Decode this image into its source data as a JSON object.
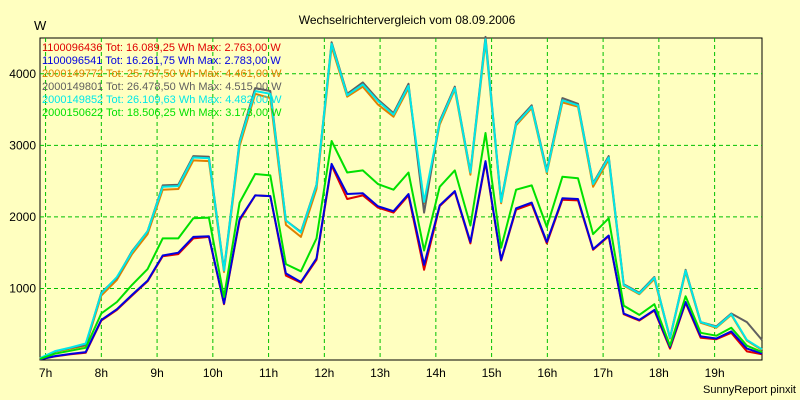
{
  "chart_data": {
    "type": "line",
    "title": "Wechselrichtervergleich vom 08.09.2006",
    "ylabel": "W",
    "xlabel": "",
    "x_ticks": [
      "7h",
      "8h",
      "9h",
      "10h",
      "11h",
      "12h",
      "13h",
      "14h",
      "15h",
      "16h",
      "17h",
      "18h",
      "19h"
    ],
    "y_ticks": [
      "1000",
      "2000",
      "3000",
      "4000"
    ],
    "x_range_hours": [
      6.9,
      19.85
    ],
    "ylim": [
      0,
      4500
    ],
    "grid": true,
    "legend_position": "top-left",
    "x": [
      6.9,
      7.17,
      7.45,
      7.72,
      8.0,
      8.28,
      8.55,
      8.83,
      9.1,
      9.38,
      9.65,
      9.93,
      10.2,
      10.48,
      10.76,
      11.03,
      11.31,
      11.58,
      11.86,
      12.13,
      12.41,
      12.69,
      12.96,
      13.24,
      13.51,
      13.79,
      14.07,
      14.34,
      14.62,
      14.89,
      15.17,
      15.44,
      15.72,
      15.99,
      16.27,
      16.55,
      16.82,
      17.1,
      17.37,
      17.65,
      17.92,
      18.2,
      18.48,
      18.75,
      19.03,
      19.3,
      19.58,
      19.85
    ],
    "series": [
      {
        "name": "1100096436",
        "legend": "1100096436 Tot: 16.089,25 Wh Max: 2.763,00 W",
        "color": "#e00000",
        "values": [
          10,
          50,
          80,
          100,
          550,
          700,
          900,
          1100,
          1450,
          1480,
          1700,
          1720,
          780,
          1950,
          2300,
          2290,
          1180,
          1080,
          1400,
          2720,
          2250,
          2300,
          2130,
          2060,
          2300,
          1260,
          2150,
          2350,
          1630,
          2760,
          1390,
          2100,
          2180,
          1630,
          2240,
          2230,
          1540,
          1730,
          640,
          550,
          690,
          160,
          800,
          310,
          290,
          380,
          120,
          80
        ]
      },
      {
        "name": "1100096541",
        "legend": "1100096541 Tot: 16.261,75 Wh Max: 2.783,00 W",
        "color": "#0000e0",
        "values": [
          10,
          55,
          85,
          110,
          560,
          710,
          910,
          1110,
          1460,
          1500,
          1720,
          1730,
          790,
          1970,
          2300,
          2290,
          1210,
          1090,
          1420,
          2740,
          2320,
          2330,
          2150,
          2080,
          2320,
          1330,
          2160,
          2360,
          1650,
          2780,
          1400,
          2120,
          2200,
          1650,
          2260,
          2250,
          1550,
          1740,
          650,
          560,
          700,
          180,
          810,
          330,
          300,
          400,
          160,
          90
        ]
      },
      {
        "name": "2000149772",
        "legend": "2000149772 Tot: 25.787,50 Wh Max: 4.461,00 W",
        "color": "#e08000",
        "values": [
          20,
          120,
          160,
          200,
          900,
          1120,
          1480,
          1760,
          2380,
          2390,
          2790,
          2780,
          1230,
          2990,
          3720,
          3660,
          1890,
          1720,
          2390,
          4380,
          3680,
          3820,
          3570,
          3400,
          3800,
          2190,
          3290,
          3780,
          2590,
          4450,
          2190,
          3280,
          3520,
          2610,
          3600,
          3540,
          2420,
          2800,
          1040,
          920,
          1130,
          300,
          1230,
          520,
          450,
          630,
          270,
          140
        ]
      },
      {
        "name": "2000149801",
        "legend": "2000149801 Tot: 26.478,50 Wh Max: 4.515,00 W",
        "color": "#606060",
        "values": [
          20,
          120,
          170,
          210,
          940,
          1150,
          1520,
          1800,
          2440,
          2450,
          2850,
          2840,
          1260,
          3060,
          3800,
          3760,
          1950,
          1790,
          2450,
          4440,
          3720,
          3880,
          3640,
          3450,
          3860,
          2060,
          3340,
          3820,
          2630,
          4515,
          2220,
          3320,
          3560,
          2650,
          3660,
          3580,
          2470,
          2850,
          1060,
          940,
          1160,
          310,
          1260,
          530,
          470,
          650,
          530,
          280
        ]
      },
      {
        "name": "2000149852",
        "legend": "2000149852 Tot: 26.109,63 Wh Max: 4.482,00 W",
        "color": "#00e8e8",
        "values": [
          25,
          125,
          175,
          230,
          930,
          1160,
          1510,
          1800,
          2420,
          2430,
          2830,
          2820,
          1250,
          3040,
          3760,
          3720,
          1950,
          1780,
          2440,
          4420,
          3700,
          3850,
          3620,
          3430,
          3830,
          2210,
          3320,
          3800,
          2620,
          4482,
          2210,
          3300,
          3540,
          2630,
          3630,
          3560,
          2460,
          2830,
          1050,
          930,
          1150,
          310,
          1250,
          530,
          460,
          640,
          280,
          150
        ]
      },
      {
        "name": "2000150622",
        "legend": "2000150622 Tot: 18.506,25 Wh Max: 3.173,00 W",
        "color": "#00e000",
        "values": [
          15,
          90,
          130,
          170,
          650,
          810,
          1050,
          1270,
          1700,
          1700,
          1980,
          1990,
          880,
          2200,
          2600,
          2580,
          1340,
          1240,
          1700,
          3060,
          2620,
          2650,
          2460,
          2380,
          2620,
          1530,
          2420,
          2650,
          1880,
          3173,
          1570,
          2380,
          2440,
          1860,
          2560,
          2540,
          1760,
          1980,
          760,
          630,
          780,
          200,
          890,
          380,
          340,
          450,
          200,
          110
        ]
      }
    ]
  },
  "footer": "SunnyReport pinxit"
}
